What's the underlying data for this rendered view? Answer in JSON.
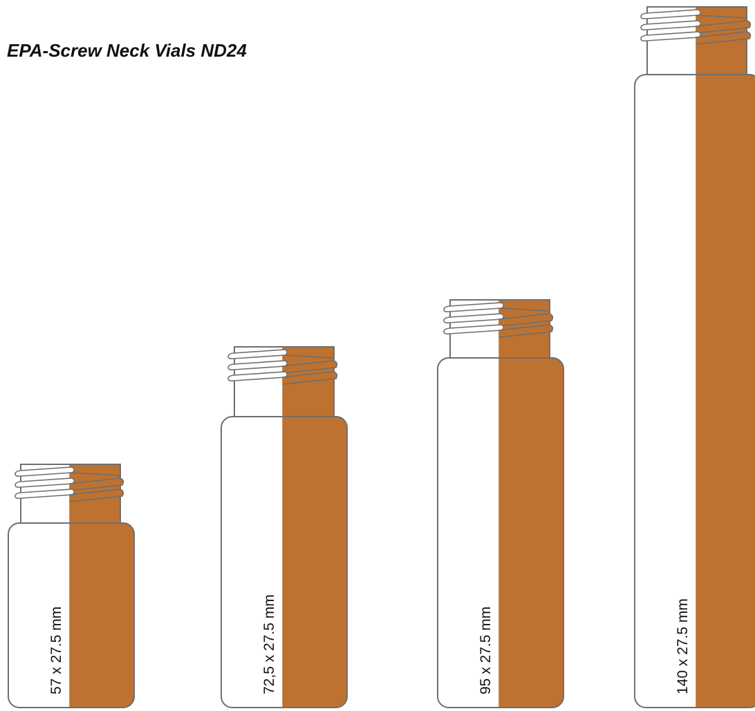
{
  "header": {
    "title": "EPA-Screw Neck Vials ND24"
  },
  "colors": {
    "amber": "#be7231",
    "glass": "#ffffff",
    "outline": "#6e6e6e"
  },
  "vials": [
    {
      "label": "57 x 27.5 mm"
    },
    {
      "label": "72,5 x 27.5 mm"
    },
    {
      "label": "95 x 27.5 mm"
    },
    {
      "label": "140 x 27.5 mm"
    }
  ]
}
